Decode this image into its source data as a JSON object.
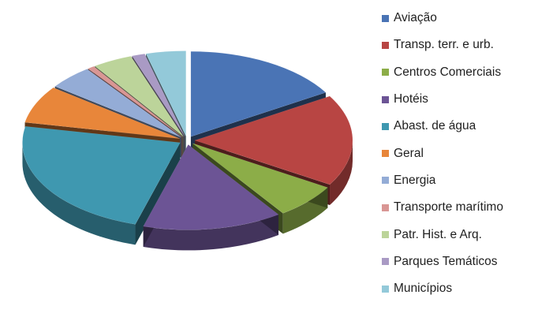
{
  "chart_data": {
    "type": "pie",
    "style": "3d-exploded",
    "title": "",
    "legend_position": "right",
    "slices": [
      {
        "name": "Aviação",
        "value": 16.0,
        "color": "#4a74b5"
      },
      {
        "name": "Transp. terr. e urb.",
        "value": 17.0,
        "color": "#b84543"
      },
      {
        "name": "Centros Comerciais",
        "value": 6.5,
        "color": "#8cad48"
      },
      {
        "name": "Hotéis",
        "value": 14.0,
        "color": "#6c5495"
      },
      {
        "name": "Abast. de água",
        "value": 23.0,
        "color": "#3f98b0"
      },
      {
        "name": "Geral",
        "value": 7.0,
        "color": "#e8863a"
      },
      {
        "name": "Energia",
        "value": 4.5,
        "color": "#94acd6"
      },
      {
        "name": "Transporte marítimo",
        "value": 0.7,
        "color": "#d99694"
      },
      {
        "name": "Patr. Hist. e Arq.",
        "value": 4.0,
        "color": "#bcd49a"
      },
      {
        "name": "Parques Temáticos",
        "value": 1.3,
        "color": "#a99ac4"
      },
      {
        "name": "Municípios",
        "value": 4.0,
        "color": "#93c9d9"
      }
    ]
  }
}
